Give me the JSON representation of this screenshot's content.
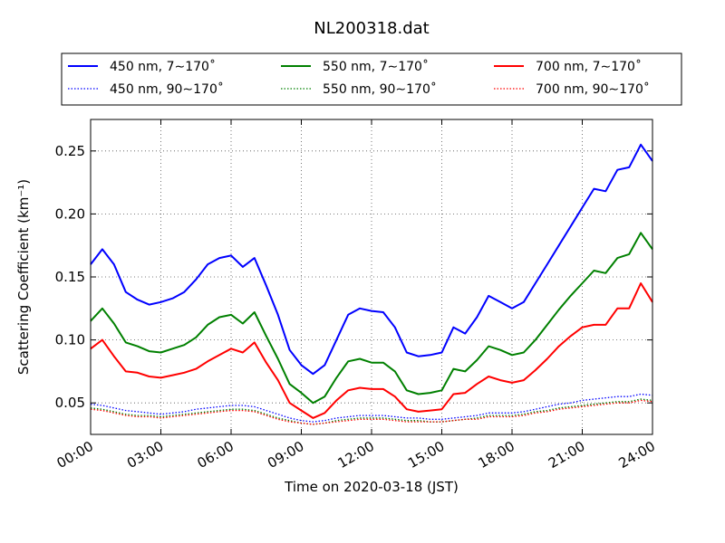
{
  "chart_data": {
    "type": "line",
    "title": "NL200318.dat",
    "xlabel": "Time on 2020-03-18 (JST)",
    "ylabel": "Scattering Coefficient (km⁻¹)",
    "xlim": [
      0,
      24
    ],
    "ylim": [
      0.025,
      0.275
    ],
    "grid": true,
    "legend_position": "top",
    "x_ticks": [
      {
        "value": 0,
        "label": "00:00"
      },
      {
        "value": 3,
        "label": "03:00"
      },
      {
        "value": 6,
        "label": "06:00"
      },
      {
        "value": 9,
        "label": "09:00"
      },
      {
        "value": 12,
        "label": "12:00"
      },
      {
        "value": 15,
        "label": "15:00"
      },
      {
        "value": 18,
        "label": "18:00"
      },
      {
        "value": 21,
        "label": "21:00"
      },
      {
        "value": 24,
        "label": "24:00"
      }
    ],
    "y_ticks": [
      {
        "value": 0.05,
        "label": "0.05"
      },
      {
        "value": 0.1,
        "label": "0.10"
      },
      {
        "value": 0.15,
        "label": "0.15"
      },
      {
        "value": 0.2,
        "label": "0.20"
      },
      {
        "value": 0.25,
        "label": "0.25"
      }
    ],
    "x": [
      0,
      0.5,
      1,
      1.5,
      2,
      2.5,
      3,
      3.5,
      4,
      4.5,
      5,
      5.5,
      6,
      6.5,
      7,
      7.5,
      8,
      8.5,
      9,
      9.5,
      10,
      10.5,
      11,
      11.5,
      12,
      12.5,
      13,
      13.5,
      14,
      14.5,
      15,
      15.5,
      16,
      16.5,
      17,
      17.5,
      18,
      18.5,
      19,
      19.5,
      20,
      20.5,
      21,
      21.5,
      22,
      22.5,
      23,
      23.5,
      24
    ],
    "series": [
      {
        "name": "450 nm, 7∼170˚",
        "color": "#0000ff",
        "style": "solid",
        "values": [
          0.16,
          0.172,
          0.16,
          0.138,
          0.132,
          0.128,
          0.13,
          0.133,
          0.138,
          0.148,
          0.16,
          0.165,
          0.167,
          0.158,
          0.165,
          0.143,
          0.12,
          0.092,
          0.08,
          0.073,
          0.08,
          0.1,
          0.12,
          0.125,
          0.123,
          0.122,
          0.11,
          0.09,
          0.087,
          0.088,
          0.09,
          0.11,
          0.105,
          0.118,
          0.135,
          0.13,
          0.125,
          0.13,
          0.145,
          0.16,
          0.175,
          0.19,
          0.205,
          0.22,
          0.218,
          0.235,
          0.237,
          0.255,
          0.242
        ]
      },
      {
        "name": "550 nm, 7∼170˚",
        "color": "#008000",
        "style": "solid",
        "values": [
          0.115,
          0.125,
          0.113,
          0.098,
          0.095,
          0.091,
          0.09,
          0.093,
          0.096,
          0.102,
          0.112,
          0.118,
          0.12,
          0.113,
          0.122,
          0.103,
          0.085,
          0.065,
          0.058,
          0.05,
          0.055,
          0.07,
          0.083,
          0.085,
          0.082,
          0.082,
          0.075,
          0.06,
          0.057,
          0.058,
          0.06,
          0.077,
          0.075,
          0.084,
          0.095,
          0.092,
          0.088,
          0.09,
          0.1,
          0.112,
          0.124,
          0.135,
          0.145,
          0.155,
          0.153,
          0.165,
          0.168,
          0.185,
          0.172
        ]
      },
      {
        "name": "700 nm, 7∼170˚",
        "color": "#ff0000",
        "style": "solid",
        "values": [
          0.093,
          0.1,
          0.087,
          0.075,
          0.074,
          0.071,
          0.07,
          0.072,
          0.074,
          0.077,
          0.083,
          0.088,
          0.093,
          0.09,
          0.098,
          0.082,
          0.068,
          0.05,
          0.044,
          0.038,
          0.042,
          0.052,
          0.06,
          0.062,
          0.061,
          0.061,
          0.055,
          0.045,
          0.043,
          0.044,
          0.045,
          0.057,
          0.058,
          0.065,
          0.071,
          0.068,
          0.066,
          0.068,
          0.076,
          0.085,
          0.095,
          0.103,
          0.11,
          0.112,
          0.112,
          0.125,
          0.125,
          0.145,
          0.13
        ]
      },
      {
        "name": "450 nm, 90∼170˚",
        "color": "#0000ff",
        "style": "dotted",
        "values": [
          0.049,
          0.048,
          0.046,
          0.044,
          0.043,
          0.042,
          0.041,
          0.042,
          0.043,
          0.045,
          0.046,
          0.047,
          0.048,
          0.048,
          0.047,
          0.044,
          0.041,
          0.038,
          0.036,
          0.035,
          0.036,
          0.038,
          0.039,
          0.04,
          0.04,
          0.04,
          0.039,
          0.038,
          0.038,
          0.037,
          0.037,
          0.038,
          0.039,
          0.04,
          0.042,
          0.042,
          0.042,
          0.043,
          0.045,
          0.047,
          0.049,
          0.05,
          0.052,
          0.053,
          0.054,
          0.055,
          0.055,
          0.057,
          0.056
        ]
      },
      {
        "name": "550 nm, 90∼170˚",
        "color": "#008000",
        "style": "dotted",
        "values": [
          0.046,
          0.045,
          0.043,
          0.041,
          0.04,
          0.04,
          0.039,
          0.04,
          0.041,
          0.042,
          0.043,
          0.044,
          0.045,
          0.045,
          0.044,
          0.041,
          0.038,
          0.036,
          0.034,
          0.033,
          0.034,
          0.036,
          0.037,
          0.038,
          0.038,
          0.038,
          0.037,
          0.036,
          0.036,
          0.035,
          0.035,
          0.036,
          0.037,
          0.038,
          0.04,
          0.04,
          0.04,
          0.041,
          0.043,
          0.044,
          0.046,
          0.047,
          0.048,
          0.049,
          0.05,
          0.051,
          0.051,
          0.053,
          0.052
        ]
      },
      {
        "name": "700 nm, 90∼170˚",
        "color": "#ff0000",
        "style": "dotted",
        "values": [
          0.045,
          0.044,
          0.042,
          0.04,
          0.039,
          0.039,
          0.038,
          0.039,
          0.04,
          0.041,
          0.042,
          0.043,
          0.044,
          0.044,
          0.043,
          0.04,
          0.037,
          0.035,
          0.034,
          0.033,
          0.034,
          0.035,
          0.036,
          0.037,
          0.037,
          0.037,
          0.036,
          0.035,
          0.035,
          0.035,
          0.035,
          0.036,
          0.037,
          0.037,
          0.039,
          0.039,
          0.039,
          0.04,
          0.042,
          0.043,
          0.045,
          0.046,
          0.047,
          0.048,
          0.049,
          0.05,
          0.05,
          0.052,
          0.051
        ]
      }
    ]
  }
}
